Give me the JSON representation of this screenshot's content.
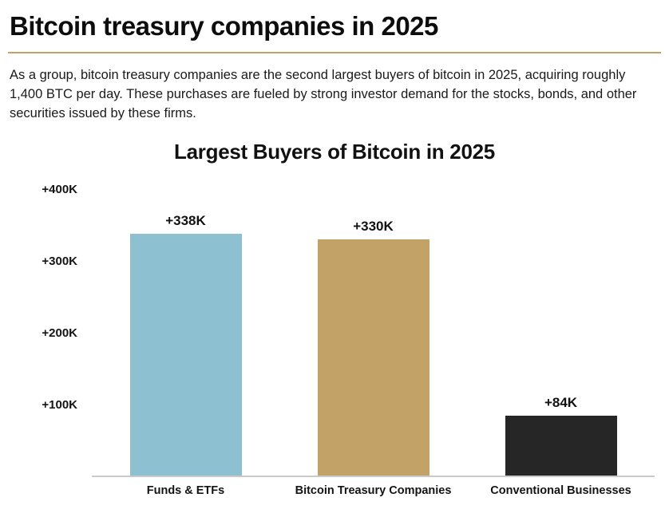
{
  "header": {
    "title": "Bitcoin treasury companies in 2025",
    "divider_color": "#c2a266"
  },
  "intro": {
    "text": "As a group, bitcoin treasury companies are the second largest buyers of bitcoin in 2025, acquiring roughly 1,400 BTC per day. These purchases are fueled by strong investor demand for the stocks, bonds, and other securities issued by these firms."
  },
  "chart_data": {
    "type": "bar",
    "title": "Largest Buyers of Bitcoin in 2025",
    "categories": [
      "Funds & ETFs",
      "Bitcoin Treasury Companies",
      "Conventional Businesses"
    ],
    "values": [
      338000,
      330000,
      84000
    ],
    "value_labels": [
      "+338K",
      "+330K",
      "+84K"
    ],
    "colors": [
      "#8dc0d0",
      "#c2a266",
      "#262626"
    ],
    "xlabel": "",
    "ylabel": "",
    "ylim": [
      0,
      420000
    ],
    "yticks": [
      400000,
      300000,
      200000,
      100000
    ],
    "ytick_labels": [
      "+400K",
      "+300K",
      "+200K",
      "+100K"
    ],
    "grid": false,
    "legend": false
  }
}
